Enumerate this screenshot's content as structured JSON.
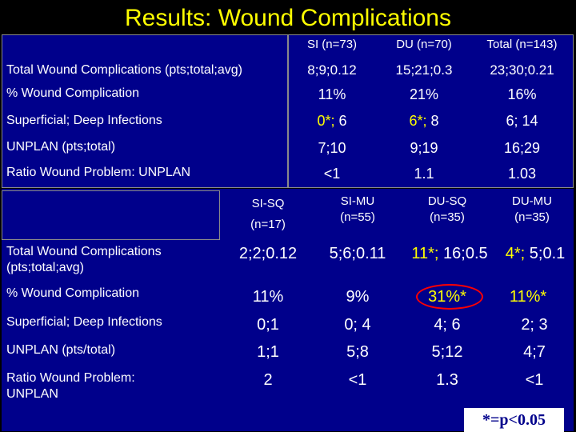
{
  "title": "Results: Wound Complications",
  "table1": {
    "headers": [
      "SI (n=73)",
      "DU (n=70)",
      "Total (n=143)"
    ],
    "rows": [
      {
        "label": "Total Wound Complications (pts;total;avg)",
        "values": [
          "8;9;0.12",
          "15;21;0.3",
          "23;30;0.21"
        ]
      },
      {
        "label": "% Wound Complication",
        "values": [
          "11%",
          "21%",
          "16%"
        ]
      },
      {
        "label": "Superficial; Deep Infections",
        "values": [
          "0*;",
          "6",
          "6*;",
          "8",
          "6; 14"
        ]
      },
      {
        "label": "UNPLAN (pts;total)",
        "values": [
          "7;10",
          "9;19",
          "16;29"
        ]
      },
      {
        "label": "Ratio Wound Problem: UNPLAN",
        "values": [
          "<1",
          "1.1",
          "1.03"
        ]
      }
    ]
  },
  "table2": {
    "headers": [
      {
        "name": "SI-SQ",
        "n": "(n=17)"
      },
      {
        "name": "SI-MU",
        "n": "(n=55)"
      },
      {
        "name": "DU-SQ",
        "n": "(n=35)"
      },
      {
        "name": "DU-MU",
        "n": "(n=35)"
      }
    ],
    "rows": [
      {
        "label": "Total Wound Complications (pts;total;avg)",
        "values": [
          "2;2;0.12",
          "5;6;0.11",
          "11*;",
          "16;0.5",
          "4*;",
          "5;0.1"
        ]
      },
      {
        "label": "% Wound Complication",
        "values": [
          "11%",
          "9%",
          "31%*",
          "11%*"
        ]
      },
      {
        "label": "Superficial; Deep Infections",
        "values": [
          "0;1",
          "0; 4",
          "4; 6",
          "2; 3"
        ]
      },
      {
        "label": "UNPLAN (pts/total)",
        "values": [
          "1;1",
          "5;8",
          "5;12",
          "4;7"
        ]
      },
      {
        "label": "Ratio Wound Problem: UNPLAN",
        "values": [
          "2",
          "<1",
          "1.3",
          "<1"
        ]
      }
    ]
  },
  "footnote": "*=p<0.05",
  "colors": {
    "background": "#000000",
    "panel": "#00008b",
    "title": "#ffff00",
    "highlight": "#ffff00",
    "circle": "#ff0000",
    "footnote_bg": "#ffffff",
    "footnote_text": "#00008b"
  }
}
